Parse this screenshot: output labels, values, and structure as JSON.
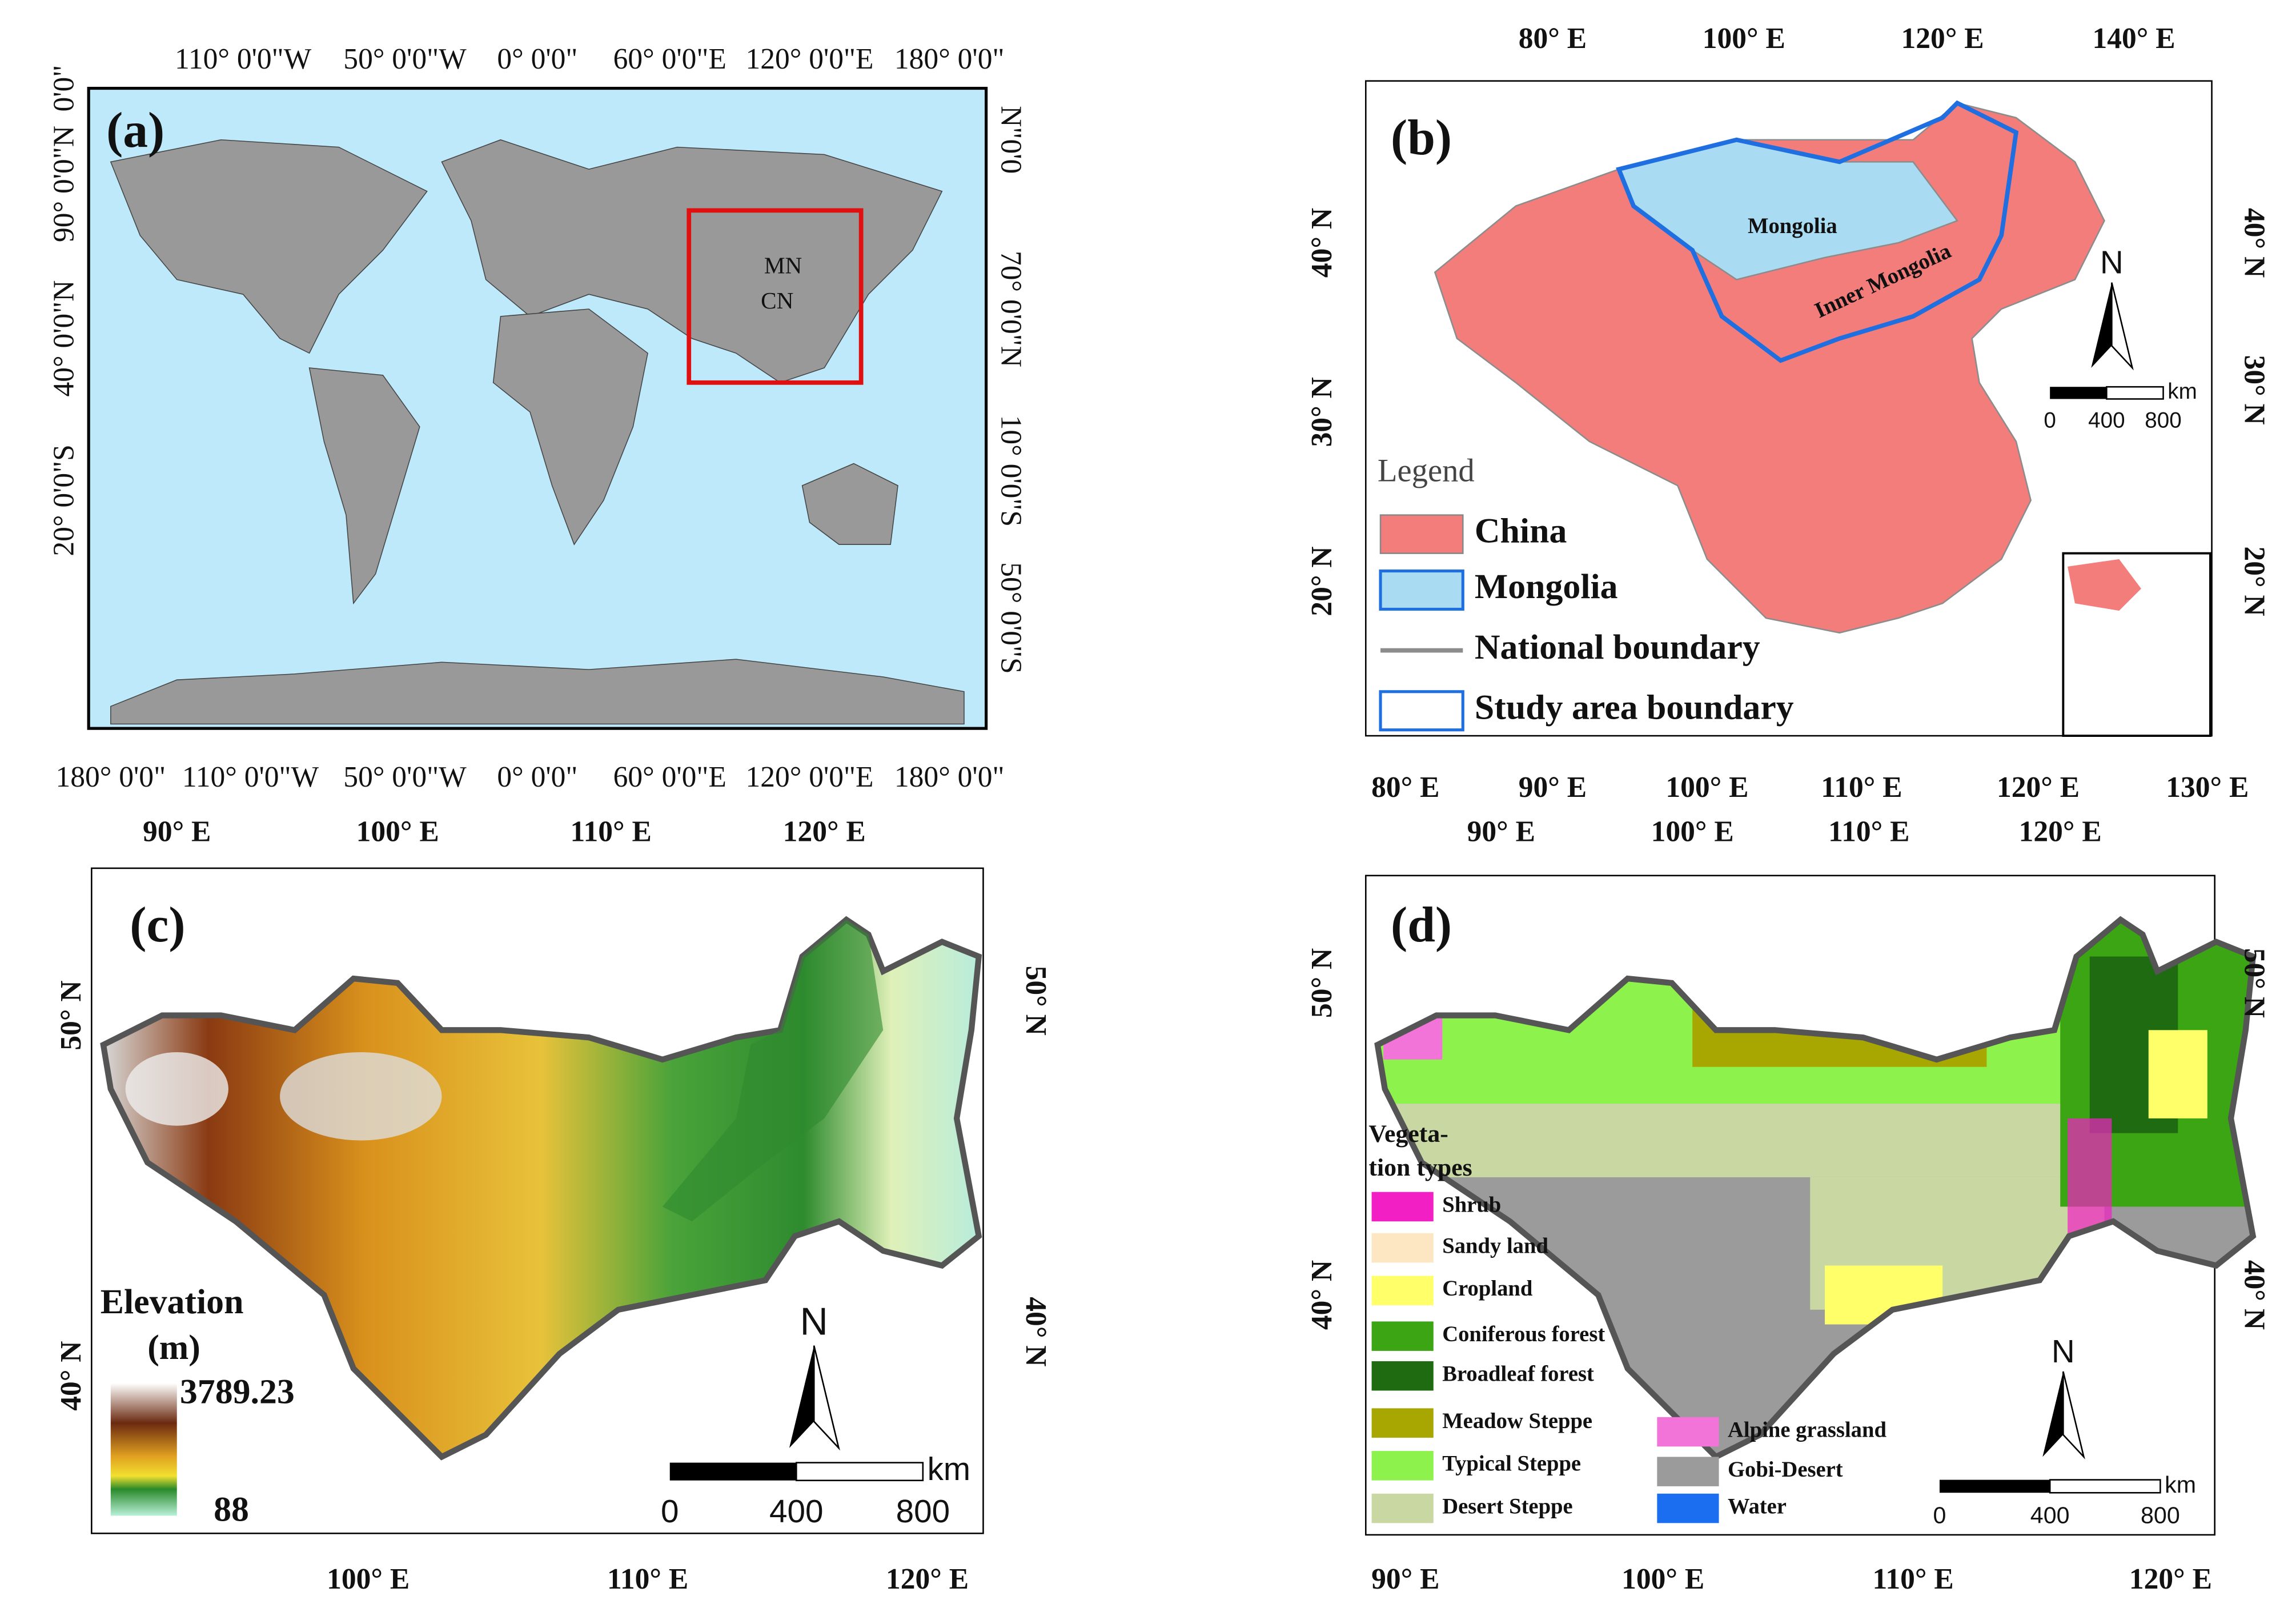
{
  "panels": [
    {
      "label": "(a)",
      "top_ticks": [
        "110° 0'0\"W",
        "50° 0'0\"W",
        "0° 0'0\"",
        "60° 0'0\"E",
        "120° 0'0\"E",
        "180° 0'0\""
      ],
      "bottom_ticks": [
        "180° 0'0\"",
        "110° 0'0\"W",
        "50° 0'0\"W",
        "0° 0'0\"",
        "60° 0'0\"E",
        "120° 0'0\"E",
        "180° 0'0\""
      ],
      "left_ticks": [
        "0'0\"",
        "90° 0'0\"N",
        "40° 0'0\"N",
        "20° 0'0\"S"
      ],
      "right_ticks": [
        "N\"0'0",
        "70° 0'0\"N",
        "10° 0'0\"S",
        "50° 0'0\"S"
      ],
      "map_labels": [
        "MN",
        "CN"
      ]
    },
    {
      "label": "(b)",
      "top_ticks": [
        "80°  E",
        "100°  E",
        "120°  E",
        "140°  E"
      ],
      "bottom_ticks": [
        "80°  E",
        "90°  E",
        "100°  E",
        "110°  E",
        "120°  E",
        "130°  E"
      ],
      "left_ticks": [
        "40°  N",
        "30°  N",
        "20°  N"
      ],
      "right_ticks": [
        "40°  N",
        "30°  N",
        "20°  N"
      ],
      "map_labels": [
        "Mongolia",
        "Inner Mongolia"
      ],
      "legend": {
        "title": "Legend",
        "items": [
          {
            "label": "China",
            "color": "#f27d7b"
          },
          {
            "label": "Mongolia",
            "color": "#a9dcf2"
          },
          {
            "label": "National boundary",
            "color": "#8c8c8c"
          },
          {
            "label": "Study area boundary",
            "color": "#1f6fe0"
          }
        ]
      },
      "north": "N",
      "scale": {
        "unit": "km",
        "ticks": [
          0,
          400,
          800
        ]
      }
    },
    {
      "label": "(c)",
      "top_ticks": [
        "90°  E",
        "100°  E",
        "110°  E",
        "120°  E"
      ],
      "bottom_ticks": [
        "100°  E",
        "110°  E",
        "120°  E"
      ],
      "left_ticks": [
        "50°  N",
        "40°  N"
      ],
      "right_ticks": [
        "50°  N",
        "40°  N"
      ],
      "legend": {
        "title": [
          "Elevation",
          "(m)"
        ],
        "max": 3789.23,
        "min": 88
      },
      "north": "N",
      "scale": {
        "unit": "km",
        "ticks": [
          0,
          400,
          800
        ]
      }
    },
    {
      "label": "(d)",
      "top_ticks": [
        "90°  E",
        "100°  E",
        "110°  E",
        "120°  E"
      ],
      "bottom_ticks": [
        "90°  E",
        "100°  E",
        "110°  E",
        "120°  E"
      ],
      "left_ticks": [
        "50°  N",
        "40°  N"
      ],
      "right_ticks": [
        "50°  N",
        "40°  N"
      ],
      "legend": {
        "title": [
          "Vegeta-",
          "tion types"
        ],
        "items": [
          {
            "label": "Shrub",
            "color": "#f21fc4"
          },
          {
            "label": "Sandy land",
            "color": "#fde6c2"
          },
          {
            "label": "Cropland",
            "color": "#ffff6a"
          },
          {
            "label": "Coniferous forest",
            "color": "#3ca514"
          },
          {
            "label": "Broadleaf forest",
            "color": "#1e6b12"
          },
          {
            "label": "Meadow Steppe",
            "color": "#a8a600"
          },
          {
            "label": "Typical Steppe",
            "color": "#8ef24c"
          },
          {
            "label": "Desert Steppe",
            "color": "#c9d8a2"
          },
          {
            "label": "Alpine grassland",
            "color": "#f274d8"
          },
          {
            "label": "Gobi-Desert",
            "color": "#9b9b9b"
          },
          {
            "label": "Water",
            "color": "#1a6eef"
          }
        ]
      },
      "north": "N",
      "scale": {
        "unit": "km",
        "ticks": [
          0,
          400,
          800
        ]
      }
    }
  ]
}
